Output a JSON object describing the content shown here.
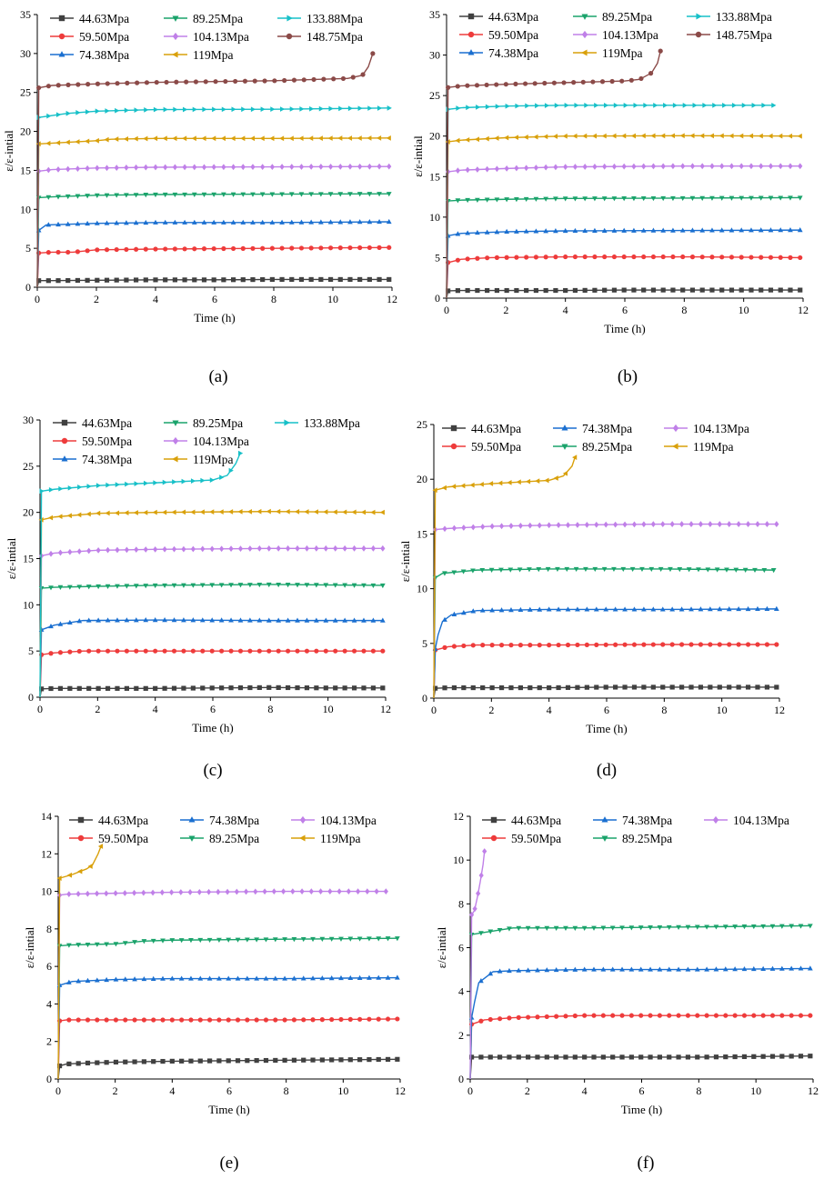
{
  "colors": {
    "44.63Mpa": "#404040",
    "59.50Mpa": "#ee3b3b",
    "74.38Mpa": "#1a6fd0",
    "89.25Mpa": "#1aa36b",
    "104.13Mpa": "#c080e8",
    "119Mpa": "#d9a00a",
    "133.88Mpa": "#17c0c8",
    "148.75Mpa": "#8b4a48"
  },
  "chart_data": [
    {
      "type": "line",
      "panel_label": "(a)",
      "xlabel": "Time (h)",
      "ylabel": "ε/ε-intial",
      "xlim": [
        0,
        12
      ],
      "ylim": [
        0,
        35
      ],
      "xticks": [
        "0",
        "2",
        "4",
        "6",
        "8",
        "10",
        "12"
      ],
      "yticks": [
        "0",
        "5",
        "10",
        "15",
        "20",
        "25",
        "30",
        "35"
      ],
      "legend_cols": 3,
      "series": [
        {
          "name": "44.63Mpa",
          "marker": "square",
          "x": [
            0,
            0.05,
            0.5,
            2,
            4,
            6,
            8,
            10,
            11.9
          ],
          "values": [
            0,
            0.85,
            0.85,
            0.9,
            0.95,
            0.95,
            1.0,
            1.0,
            1.0
          ]
        },
        {
          "name": "59.50Mpa",
          "marker": "circle",
          "x": [
            0,
            0.05,
            0.5,
            1.2,
            2,
            4,
            8,
            11.9
          ],
          "values": [
            0,
            4.4,
            4.5,
            4.5,
            4.8,
            4.9,
            5.0,
            5.1
          ]
        },
        {
          "name": "74.38Mpa",
          "marker": "triangle-up",
          "x": [
            0,
            0.05,
            0.3,
            2,
            4,
            8,
            11.9
          ],
          "values": [
            0,
            7.3,
            8.0,
            8.2,
            8.3,
            8.3,
            8.4
          ]
        },
        {
          "name": "89.25Mpa",
          "marker": "triangle-down",
          "x": [
            0,
            0.05,
            0.5,
            2,
            4,
            8,
            11.9
          ],
          "values": [
            0,
            11.5,
            11.6,
            11.8,
            11.9,
            11.95,
            12.0
          ]
        },
        {
          "name": "104.13Mpa",
          "marker": "diamond",
          "x": [
            0,
            0.05,
            0.5,
            2,
            4,
            8,
            11.9
          ],
          "values": [
            0,
            14.9,
            15.1,
            15.3,
            15.4,
            15.45,
            15.5
          ]
        },
        {
          "name": "119Mpa",
          "marker": "triangle-left",
          "x": [
            0,
            0.05,
            1,
            2,
            2.5,
            4,
            8,
            11.9
          ],
          "values": [
            0,
            18.4,
            18.6,
            18.8,
            19.0,
            19.1,
            19.1,
            19.15
          ]
        },
        {
          "name": "133.88Mpa",
          "marker": "triangle-right",
          "x": [
            0,
            0.05,
            1,
            2,
            4,
            8,
            11.9
          ],
          "values": [
            0,
            21.8,
            22.3,
            22.6,
            22.8,
            22.85,
            23.0
          ]
        },
        {
          "name": "148.75Mpa",
          "marker": "circle",
          "x": [
            0,
            0.05,
            0.5,
            2,
            4,
            8,
            10.5,
            11.0,
            11.2,
            11.35
          ],
          "values": [
            0,
            25.6,
            25.9,
            26.1,
            26.3,
            26.5,
            26.8,
            27.2,
            28.3,
            30.0
          ]
        }
      ]
    },
    {
      "type": "line",
      "panel_label": "(b)",
      "xlabel": "Time (h)",
      "ylabel": "ε/ε-intial",
      "xlim": [
        0,
        12
      ],
      "ylim": [
        0,
        35
      ],
      "xticks": [
        "0",
        "2",
        "4",
        "6",
        "8",
        "10",
        "12"
      ],
      "yticks": [
        "0",
        "5",
        "10",
        "15",
        "20",
        "25",
        "30",
        "35"
      ],
      "legend_cols": 3,
      "series": [
        {
          "name": "44.63Mpa",
          "marker": "square",
          "x": [
            0,
            0.05,
            0.5,
            2,
            4,
            6,
            8,
            10,
            11.9
          ],
          "values": [
            0,
            0.9,
            0.95,
            0.95,
            0.95,
            1.0,
            1.0,
            1.0,
            1.0
          ]
        },
        {
          "name": "59.50Mpa",
          "marker": "circle",
          "x": [
            0,
            0.05,
            0.5,
            1.5,
            4,
            8,
            11.9
          ],
          "values": [
            0,
            4.4,
            4.8,
            5.0,
            5.1,
            5.1,
            5.0
          ]
        },
        {
          "name": "74.38Mpa",
          "marker": "triangle-up",
          "x": [
            0,
            0.05,
            0.5,
            2,
            4,
            8,
            11.9
          ],
          "values": [
            0,
            7.7,
            8.0,
            8.2,
            8.3,
            8.35,
            8.4
          ]
        },
        {
          "name": "89.25Mpa",
          "marker": "triangle-down",
          "x": [
            0,
            0.05,
            0.5,
            2,
            4,
            8,
            11.9
          ],
          "values": [
            0,
            12.0,
            12.1,
            12.2,
            12.3,
            12.35,
            12.4
          ]
        },
        {
          "name": "104.13Mpa",
          "marker": "diamond",
          "x": [
            0,
            0.05,
            0.5,
            2,
            4,
            8,
            11.9
          ],
          "values": [
            0,
            15.6,
            15.8,
            16.0,
            16.2,
            16.3,
            16.3
          ]
        },
        {
          "name": "119Mpa",
          "marker": "triangle-left",
          "x": [
            0,
            0.05,
            0.5,
            2,
            4,
            8,
            11.9
          ],
          "values": [
            0,
            19.3,
            19.5,
            19.8,
            20.0,
            20.05,
            20.0
          ]
        },
        {
          "name": "133.88Mpa",
          "marker": "triangle-right",
          "x": [
            0,
            0.05,
            0.5,
            2,
            4,
            8,
            11
          ],
          "values": [
            0,
            23.3,
            23.5,
            23.7,
            23.8,
            23.8,
            23.8
          ]
        },
        {
          "name": "148.75Mpa",
          "marker": "circle",
          "x": [
            0,
            0.05,
            0.5,
            2,
            4,
            6,
            6.5,
            6.9,
            7.1,
            7.2
          ],
          "values": [
            0,
            26.0,
            26.2,
            26.4,
            26.6,
            26.8,
            27.0,
            27.8,
            29.0,
            30.5
          ]
        }
      ]
    },
    {
      "type": "line",
      "panel_label": "(c)",
      "xlabel": "Time (h)",
      "ylabel": "ε/ε-intial",
      "xlim": [
        0,
        12
      ],
      "ylim": [
        0,
        30
      ],
      "xticks": [
        "0",
        "2",
        "4",
        "6",
        "8",
        "10",
        "12"
      ],
      "yticks": [
        "0",
        "5",
        "10",
        "15",
        "20",
        "25",
        "30"
      ],
      "legend_cols": 3,
      "series": [
        {
          "name": "44.63Mpa",
          "marker": "square",
          "x": [
            0,
            0.05,
            0.5,
            2,
            4,
            6,
            8,
            10,
            11.9
          ],
          "values": [
            0,
            0.9,
            0.95,
            0.95,
            0.95,
            1.0,
            1.05,
            1.0,
            1.0
          ]
        },
        {
          "name": "59.50Mpa",
          "marker": "circle",
          "x": [
            0,
            0.05,
            0.5,
            1.5,
            4,
            8,
            11.9
          ],
          "values": [
            0,
            4.6,
            4.8,
            5.0,
            5.0,
            5.0,
            5.0
          ]
        },
        {
          "name": "74.38Mpa",
          "marker": "triangle-up",
          "x": [
            0,
            0.05,
            0.5,
            1.5,
            4,
            8,
            11.9
          ],
          "values": [
            0,
            7.3,
            7.8,
            8.3,
            8.35,
            8.3,
            8.3
          ]
        },
        {
          "name": "89.25Mpa",
          "marker": "triangle-down",
          "x": [
            0,
            0.05,
            0.5,
            2,
            4,
            8,
            11.9
          ],
          "values": [
            0,
            11.8,
            11.9,
            12.0,
            12.1,
            12.2,
            12.1
          ]
        },
        {
          "name": "104.13Mpa",
          "marker": "diamond",
          "x": [
            0,
            0.05,
            0.5,
            2,
            4,
            8,
            11.9
          ],
          "values": [
            0,
            15.3,
            15.6,
            15.9,
            16.0,
            16.1,
            16.1
          ]
        },
        {
          "name": "119Mpa",
          "marker": "triangle-left",
          "x": [
            0,
            0.05,
            0.5,
            2,
            4,
            8,
            11.9
          ],
          "values": [
            0,
            19.2,
            19.5,
            19.9,
            20.0,
            20.1,
            20.0
          ]
        },
        {
          "name": "133.88Mpa",
          "marker": "triangle-right",
          "x": [
            0,
            0.05,
            0.5,
            2,
            4,
            6,
            6.5,
            6.8,
            6.95
          ],
          "values": [
            0,
            22.3,
            22.5,
            22.9,
            23.2,
            23.5,
            24.0,
            25.3,
            26.4
          ]
        }
      ]
    },
    {
      "type": "line",
      "panel_label": "(d)",
      "xlabel": "Time (h)",
      "ylabel": "ε/ε-intial",
      "xlim": [
        0,
        12
      ],
      "ylim": [
        0,
        25
      ],
      "xticks": [
        "0",
        "2",
        "4",
        "6",
        "8",
        "10",
        "12"
      ],
      "yticks": [
        "0",
        "5",
        "10",
        "15",
        "20",
        "25"
      ],
      "legend_cols": 3,
      "series": [
        {
          "name": "44.63Mpa",
          "marker": "square",
          "x": [
            0,
            0.05,
            0.5,
            2,
            4,
            6,
            8,
            10,
            11.9
          ],
          "values": [
            0,
            0.9,
            0.95,
            0.95,
            0.95,
            1.0,
            1.0,
            1.0,
            1.0
          ]
        },
        {
          "name": "59.50Mpa",
          "marker": "circle",
          "x": [
            0,
            0.05,
            0.5,
            1.5,
            4,
            8,
            11.9
          ],
          "values": [
            0,
            4.4,
            4.7,
            4.85,
            4.85,
            4.9,
            4.9
          ]
        },
        {
          "name": "74.38Mpa",
          "marker": "triangle-up",
          "x": [
            0,
            0.05,
            0.15,
            0.3,
            0.6,
            1.5,
            4,
            8,
            11.9
          ],
          "values": [
            0,
            4.5,
            5.8,
            7.0,
            7.6,
            8.0,
            8.1,
            8.1,
            8.15
          ]
        },
        {
          "name": "89.25Mpa",
          "marker": "triangle-down",
          "x": [
            0,
            0.05,
            0.3,
            1.5,
            4,
            8,
            11.8
          ],
          "values": [
            0,
            11.0,
            11.4,
            11.7,
            11.8,
            11.8,
            11.7
          ]
        },
        {
          "name": "104.13Mpa",
          "marker": "diamond",
          "x": [
            0,
            0.05,
            0.5,
            2,
            4,
            8,
            11.9
          ],
          "values": [
            0,
            15.4,
            15.5,
            15.7,
            15.8,
            15.9,
            15.9
          ]
        },
        {
          "name": "119Mpa",
          "marker": "triangle-left",
          "x": [
            0,
            0.05,
            0.5,
            2,
            4,
            4.5,
            4.8,
            4.9
          ],
          "values": [
            0,
            19.0,
            19.3,
            19.6,
            19.9,
            20.3,
            21.2,
            22.0
          ]
        }
      ]
    },
    {
      "type": "line",
      "panel_label": "(e)",
      "xlabel": "Time (h)",
      "ylabel": "ε/ε-intial",
      "xlim": [
        0,
        12
      ],
      "ylim": [
        0,
        14
      ],
      "xticks": [
        "0",
        "2",
        "4",
        "6",
        "8",
        "10",
        "12"
      ],
      "yticks": [
        "0",
        "2",
        "4",
        "6",
        "8",
        "10",
        "12",
        "14"
      ],
      "legend_cols": 3,
      "series": [
        {
          "name": "44.63Mpa",
          "marker": "square",
          "x": [
            0,
            0.05,
            0.3,
            1,
            2,
            4,
            8,
            11.9
          ],
          "values": [
            0,
            0.7,
            0.8,
            0.85,
            0.9,
            0.95,
            1.0,
            1.05
          ]
        },
        {
          "name": "59.50Mpa",
          "marker": "circle",
          "x": [
            0,
            0.05,
            0.3,
            1,
            4,
            8,
            11.9
          ],
          "values": [
            0,
            3.1,
            3.15,
            3.15,
            3.15,
            3.15,
            3.2
          ]
        },
        {
          "name": "74.38Mpa",
          "marker": "triangle-up",
          "x": [
            0,
            0.05,
            0.5,
            2,
            4,
            8,
            11.9
          ],
          "values": [
            0,
            5.0,
            5.2,
            5.3,
            5.35,
            5.35,
            5.4
          ]
        },
        {
          "name": "89.25Mpa",
          "marker": "triangle-down",
          "x": [
            0,
            0.05,
            0.5,
            2,
            3,
            4,
            8,
            11.9
          ],
          "values": [
            0,
            7.1,
            7.15,
            7.2,
            7.35,
            7.4,
            7.45,
            7.5
          ]
        },
        {
          "name": "104.13Mpa",
          "marker": "diamond",
          "x": [
            0,
            0.05,
            0.3,
            2,
            4,
            8,
            11.5
          ],
          "values": [
            0,
            9.8,
            9.85,
            9.9,
            9.95,
            10.0,
            10.0
          ]
        },
        {
          "name": "119Mpa",
          "marker": "triangle-left",
          "x": [
            0,
            0.05,
            0.5,
            1.0,
            1.2,
            1.4,
            1.5
          ],
          "values": [
            0,
            10.7,
            10.9,
            11.2,
            11.4,
            12.0,
            12.4
          ]
        }
      ]
    },
    {
      "type": "line",
      "panel_label": "(f)",
      "xlabel": "Time (h)",
      "ylabel": "ε/ε-intial",
      "xlim": [
        0,
        12
      ],
      "ylim": [
        0,
        12
      ],
      "xticks": [
        "0",
        "2",
        "4",
        "6",
        "8",
        "10",
        "12"
      ],
      "yticks": [
        "0",
        "2",
        "4",
        "6",
        "8",
        "10",
        "12"
      ],
      "legend_cols": 3,
      "series": [
        {
          "name": "44.63Mpa",
          "marker": "square",
          "x": [
            0,
            0.05,
            0.5,
            2,
            4,
            8,
            11.9
          ],
          "values": [
            0,
            1.0,
            1.0,
            1.0,
            1.0,
            1.0,
            1.05
          ]
        },
        {
          "name": "59.50Mpa",
          "marker": "circle",
          "x": [
            0,
            0.05,
            0.5,
            1.5,
            4,
            8,
            11.9
          ],
          "values": [
            0,
            2.5,
            2.7,
            2.8,
            2.9,
            2.9,
            2.9
          ]
        },
        {
          "name": "74.38Mpa",
          "marker": "triangle-up",
          "x": [
            0,
            0.05,
            0.15,
            0.3,
            0.5,
            0.8,
            1.5,
            4,
            8,
            11.9
          ],
          "values": [
            0,
            2.8,
            3.5,
            4.4,
            4.6,
            4.9,
            4.95,
            5.0,
            5.0,
            5.05
          ]
        },
        {
          "name": "89.25Mpa",
          "marker": "triangle-down",
          "x": [
            0,
            0.05,
            0.5,
            1.5,
            4,
            8,
            11.9
          ],
          "values": [
            0,
            6.6,
            6.7,
            6.9,
            6.9,
            6.95,
            7.0
          ]
        },
        {
          "name": "104.13Mpa",
          "marker": "diamond",
          "x": [
            0,
            0.05,
            0.15,
            0.25,
            0.35,
            0.45,
            0.5
          ],
          "values": [
            0,
            7.5,
            7.7,
            8.3,
            9.0,
            9.8,
            10.4
          ]
        }
      ]
    }
  ]
}
